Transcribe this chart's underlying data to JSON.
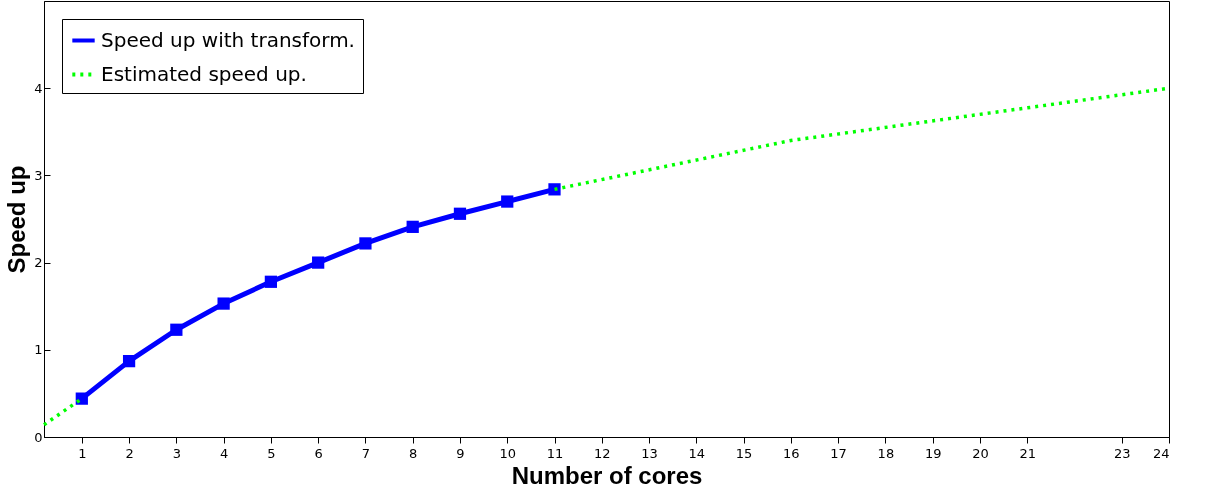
{
  "chart_data": {
    "type": "line",
    "xlabel": "Number of cores",
    "ylabel": "Speed up",
    "xlim": [
      0.2,
      24
    ],
    "xticks": [
      1,
      2,
      3,
      4,
      5,
      6,
      7,
      8,
      9,
      10,
      11,
      12,
      13,
      14,
      15,
      16,
      17,
      18,
      19,
      20,
      21,
      23,
      24
    ],
    "ylim": [
      0,
      5
    ],
    "yticks": [
      0,
      1,
      2,
      3,
      4
    ],
    "grid": false,
    "legend": "top left",
    "series": [
      {
        "name": "Speed up with transform.",
        "color": "#0000ff",
        "marker": "square",
        "line_style": "solid",
        "x": [
          1,
          2,
          3,
          4,
          5,
          6,
          7,
          8,
          9,
          10,
          11
        ],
        "values": [
          0.44,
          0.87,
          1.23,
          1.53,
          1.78,
          2.0,
          2.22,
          2.41,
          2.56,
          2.7,
          2.84
        ]
      },
      {
        "name": "Estimated speed up.",
        "color": "#00ff00",
        "marker": "none",
        "line_style": "dotted",
        "x": [
          0.2,
          1,
          6,
          11,
          16,
          24
        ],
        "values": [
          0.14,
          0.44,
          null,
          2.84,
          3.4,
          4.0
        ]
      }
    ]
  }
}
